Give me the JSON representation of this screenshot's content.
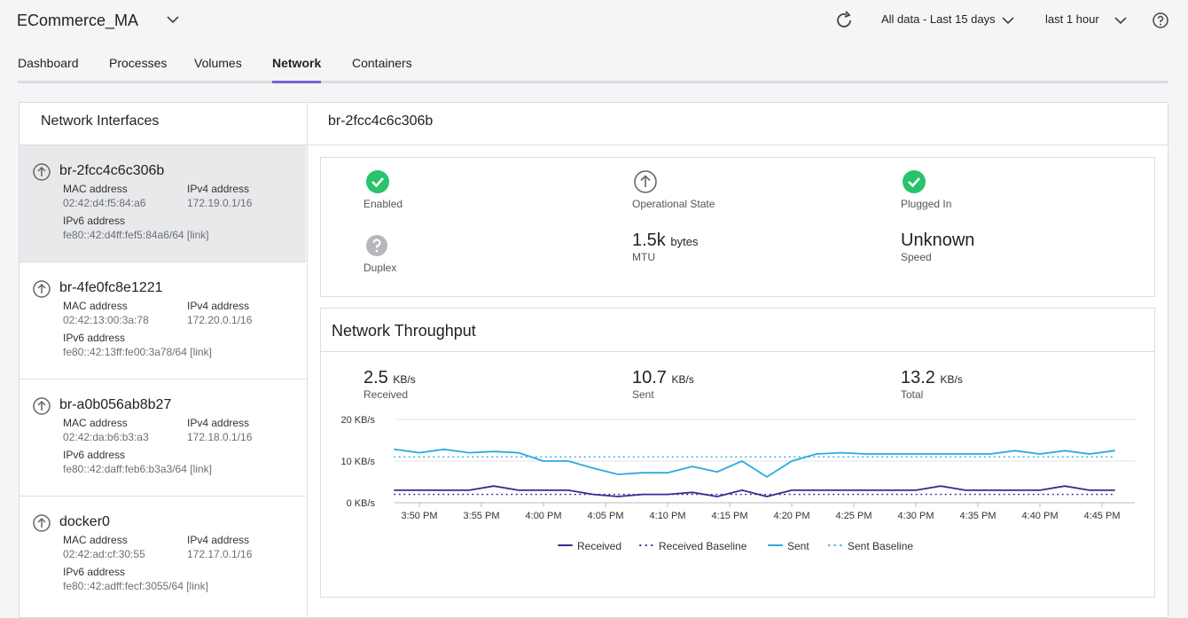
{
  "header": {
    "app": "ECommerce_MA",
    "range": "All data - Last 15 days",
    "window": "last 1 hour"
  },
  "tabs": [
    "Dashboard",
    "Processes",
    "Volumes",
    "Network",
    "Containers"
  ],
  "interfaces": {
    "title": "Network Interfaces",
    "labels": {
      "mac": "MAC address",
      "ipv4": "IPv4 address",
      "ipv6": "IPv6 address"
    },
    "items": [
      {
        "name": "br-2fcc4c6c306b",
        "mac": "02:42:d4:f5:84:a6",
        "ipv4": "172.19.0.1/16",
        "ipv6": "fe80::42:d4ff:fef5:84a6/64 [link]"
      },
      {
        "name": "br-4fe0fc8e1221",
        "mac": "02:42:13:00:3a:78",
        "ipv4": "172.20.0.1/16",
        "ipv6": "fe80::42:13ff:fe00:3a78/64 [link]"
      },
      {
        "name": "br-a0b056ab8b27",
        "mac": "02:42:da:b6:b3:a3",
        "ipv4": "172.18.0.1/16",
        "ipv6": "fe80::42:daff:feb6:b3a3/64 [link]"
      },
      {
        "name": "docker0",
        "mac": "02:42:ad:cf:30:55",
        "ipv4": "172.17.0.1/16",
        "ipv6": "fe80::42:adff:fecf:3055/64 [link]"
      }
    ]
  },
  "detail": {
    "title": "br-2fcc4c6c306b",
    "status": {
      "enabled": "Enabled",
      "operational": "Operational State",
      "plugged": "Plugged In",
      "duplex": "Duplex"
    },
    "mtu": {
      "value": "1.5k",
      "unit": "bytes",
      "label": "MTU"
    },
    "speed": {
      "value": "Unknown",
      "label": "Speed"
    }
  },
  "throughput": {
    "stats": [
      {
        "value": 2.5,
        "unit": "KB/s",
        "label": "Received"
      },
      {
        "value": 10.7,
        "unit": "KB/s",
        "label": "Sent"
      },
      {
        "value": 13.2,
        "unit": "KB/s",
        "label": "Total"
      }
    ]
  },
  "chart_data": {
    "type": "line",
    "title": "Network Throughput",
    "x": [
      48,
      50,
      52,
      54,
      56,
      58,
      60,
      62,
      64,
      66,
      68,
      70,
      72,
      74,
      76,
      78,
      80,
      82,
      84,
      86,
      88,
      90,
      92,
      94,
      96,
      98,
      100,
      102,
      104,
      106
    ],
    "xlim": [
      48,
      108
    ],
    "xticks": [
      {
        "value": 50,
        "label": "3:50 PM"
      },
      {
        "value": 55,
        "label": "3:55 PM"
      },
      {
        "value": 60,
        "label": "4:00 PM"
      },
      {
        "value": 65,
        "label": "4:05 PM"
      },
      {
        "value": 70,
        "label": "4:10 PM"
      },
      {
        "value": 75,
        "label": "4:15 PM"
      },
      {
        "value": 80,
        "label": "4:20 PM"
      },
      {
        "value": 85,
        "label": "4:25 PM"
      },
      {
        "value": 90,
        "label": "4:30 PM"
      },
      {
        "value": 95,
        "label": "4:35 PM"
      },
      {
        "value": 100,
        "label": "4:40 PM"
      },
      {
        "value": 105,
        "label": "4:45 PM"
      }
    ],
    "ylim": [
      0,
      20
    ],
    "yticks": [
      {
        "value": 0,
        "label": "0 KB/s"
      },
      {
        "value": 10,
        "label": "10 KB/s"
      },
      {
        "value": 20,
        "label": "20 KB/s"
      }
    ],
    "grid": true,
    "series": [
      {
        "name": "Received",
        "color": "#3d2a8f",
        "style": "solid",
        "values": [
          3,
          3,
          3,
          3,
          4,
          3,
          3,
          3,
          2,
          1.5,
          2,
          2,
          2.5,
          1.5,
          3,
          1.5,
          3,
          3,
          3,
          3,
          3,
          3,
          4,
          3,
          3,
          3,
          3,
          4,
          3,
          3
        ]
      },
      {
        "name": "Received Baseline",
        "color": "#3d2a8f",
        "style": "dotted",
        "values": [
          2,
          2,
          2,
          2,
          2,
          2,
          2,
          2,
          2,
          2,
          2,
          2,
          2,
          2,
          2,
          2,
          2,
          2,
          2,
          2,
          2,
          2,
          2,
          2,
          2,
          2,
          2,
          2,
          2,
          2
        ]
      },
      {
        "name": "Sent",
        "color": "#2ea8e0",
        "style": "solid",
        "values": [
          12.8,
          12,
          12.8,
          12,
          12.3,
          12,
          10,
          10,
          8.3,
          6.8,
          7.2,
          7.2,
          8.7,
          7.4,
          10,
          6.2,
          10,
          11.7,
          12,
          11.7,
          11.7,
          11.7,
          11.7,
          11.7,
          11.7,
          12.5,
          11.7,
          12.5,
          11.7,
          12.5
        ]
      },
      {
        "name": "Sent Baseline",
        "color": "#2ea8e0",
        "style": "dotted",
        "values": [
          11,
          11,
          11,
          11,
          11,
          11,
          11,
          11,
          11,
          11,
          11,
          11,
          11,
          11,
          11,
          11,
          11,
          11,
          11,
          11,
          11,
          11,
          11,
          11,
          11,
          11,
          11,
          11,
          11,
          11
        ]
      }
    ]
  }
}
